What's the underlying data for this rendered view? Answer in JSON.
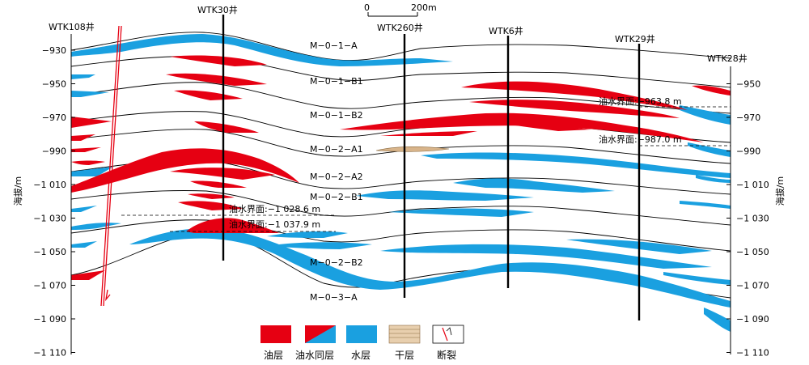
{
  "wells": [
    {
      "id": "wtk108",
      "name": "WTK108井"
    },
    {
      "id": "wtk30",
      "name": "WTK30井"
    },
    {
      "id": "wtk260",
      "name": "WTK260井"
    },
    {
      "id": "wtk6",
      "name": "WTK6井"
    },
    {
      "id": "wtk29",
      "name": "WTK29井"
    },
    {
      "id": "wtk28",
      "name": "WTK28井"
    }
  ],
  "axis": {
    "label": "海拔/m",
    "ticks": [
      "−930",
      "−950",
      "−970",
      "−990",
      "−1 010",
      "−1 030",
      "−1 050",
      "−1 070",
      "−1 090",
      "−1 110"
    ]
  },
  "scale_bar": {
    "start": "0",
    "end": "200m"
  },
  "layers": [
    "M−0−1−A",
    "M−0−1−B1",
    "M−0−1−B2",
    "M−0−2−A1",
    "M−0−2−A2",
    "M−0−2−B1",
    "M−0−2−B2",
    "M−0−3−A"
  ],
  "oil_water_contacts": [
    {
      "label": "油水界面:−963.8 m"
    },
    {
      "label": "油水界面:−987.0 m"
    },
    {
      "label": "油水界面:−1 028.6 m"
    },
    {
      "label": "油水界面:−1 037.9 m"
    }
  ],
  "legend": [
    {
      "id": "oil",
      "label": "油层",
      "color": "#e60012"
    },
    {
      "id": "oilwater",
      "label": "油水同层",
      "color": "#e60012",
      "color2": "#1aa0e0"
    },
    {
      "id": "water",
      "label": "水层",
      "color": "#1aa0e0"
    },
    {
      "id": "dry",
      "label": "干层",
      "color": "#d8b48a"
    },
    {
      "id": "fault",
      "label": "断裂",
      "color": "#e60012"
    }
  ],
  "colors": {
    "oil": "#e60012",
    "water": "#1aa0e0",
    "dry": "#d8b48a",
    "line": "#000000"
  }
}
